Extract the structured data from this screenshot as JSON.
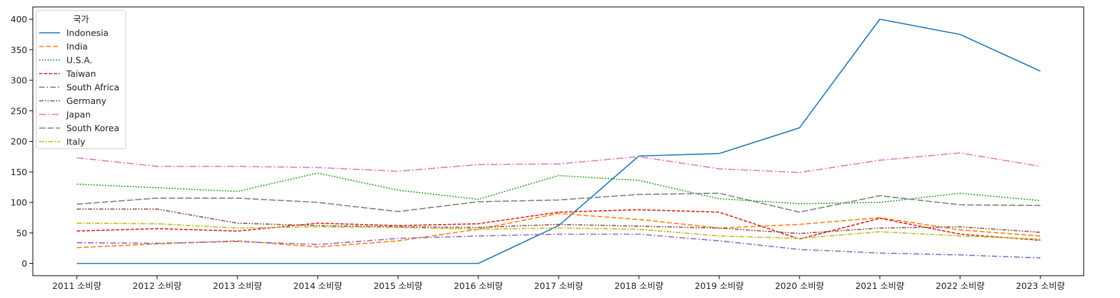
{
  "chart_data": {
    "type": "line",
    "title": "",
    "xlabel": "",
    "ylabel": "",
    "categories": [
      "2011 소비량",
      "2012 소비량",
      "2013 소비량",
      "2014 소비량",
      "2015 소비량",
      "2016 소비량",
      "2017 소비량",
      "2018 소비량",
      "2019 소비량",
      "2020 소비량",
      "2021 소비량",
      "2022 소비량",
      "2023 소비량"
    ],
    "ylim": [
      -20,
      420
    ],
    "yticks": [
      0,
      50,
      100,
      150,
      200,
      250,
      300,
      350,
      400
    ],
    "grid": false,
    "legend": {
      "title": "국가",
      "placement": "top-left"
    },
    "series": [
      {
        "name": "Indonesia",
        "color": "#1f77b4",
        "dash": "solid",
        "values": [
          0,
          0,
          0,
          0,
          0,
          0,
          62,
          176,
          180,
          222,
          400,
          375,
          315
        ]
      },
      {
        "name": "India",
        "color": "#ff7f0e",
        "dash": "dashed",
        "values": [
          26,
          32,
          37,
          27,
          37,
          56,
          82,
          72,
          58,
          64,
          75,
          55,
          45
        ]
      },
      {
        "name": "U.S.A.",
        "color": "#2ca02c",
        "dash": "dotted",
        "values": [
          130,
          124,
          118,
          148,
          120,
          105,
          144,
          136,
          106,
          98,
          100,
          115,
          103
        ]
      },
      {
        "name": "Taiwan",
        "color": "#d62728",
        "dash": "dashed2",
        "values": [
          53,
          57,
          53,
          66,
          62,
          65,
          84,
          88,
          84,
          40,
          74,
          48,
          38
        ]
      },
      {
        "name": "South Africa",
        "color": "#9467bd",
        "dash": "dashdot",
        "values": [
          34,
          33,
          36,
          31,
          41,
          45,
          48,
          48,
          37,
          23,
          17,
          14,
          9
        ]
      },
      {
        "name": "Germany",
        "color": "#8c564b",
        "dash": "dashdotdot",
        "values": [
          89,
          89,
          66,
          62,
          60,
          59,
          64,
          61,
          58,
          49,
          58,
          60,
          51
        ]
      },
      {
        "name": "Japan",
        "color": "#e377c2",
        "dash": "longdashdot",
        "values": [
          173,
          159,
          159,
          157,
          151,
          162,
          163,
          175,
          155,
          149,
          169,
          181,
          159
        ]
      },
      {
        "name": "South Korea",
        "color": "#7f7f7f",
        "dash": "longdash",
        "values": [
          97,
          107,
          107,
          100,
          85,
          101,
          104,
          113,
          115,
          84,
          111,
          96,
          95
        ]
      },
      {
        "name": "Italy",
        "color": "#bcbd22",
        "dash": "dashdotdash",
        "values": [
          66,
          65,
          58,
          60,
          59,
          56,
          58,
          56,
          45,
          41,
          52,
          45,
          40
        ]
      }
    ]
  }
}
